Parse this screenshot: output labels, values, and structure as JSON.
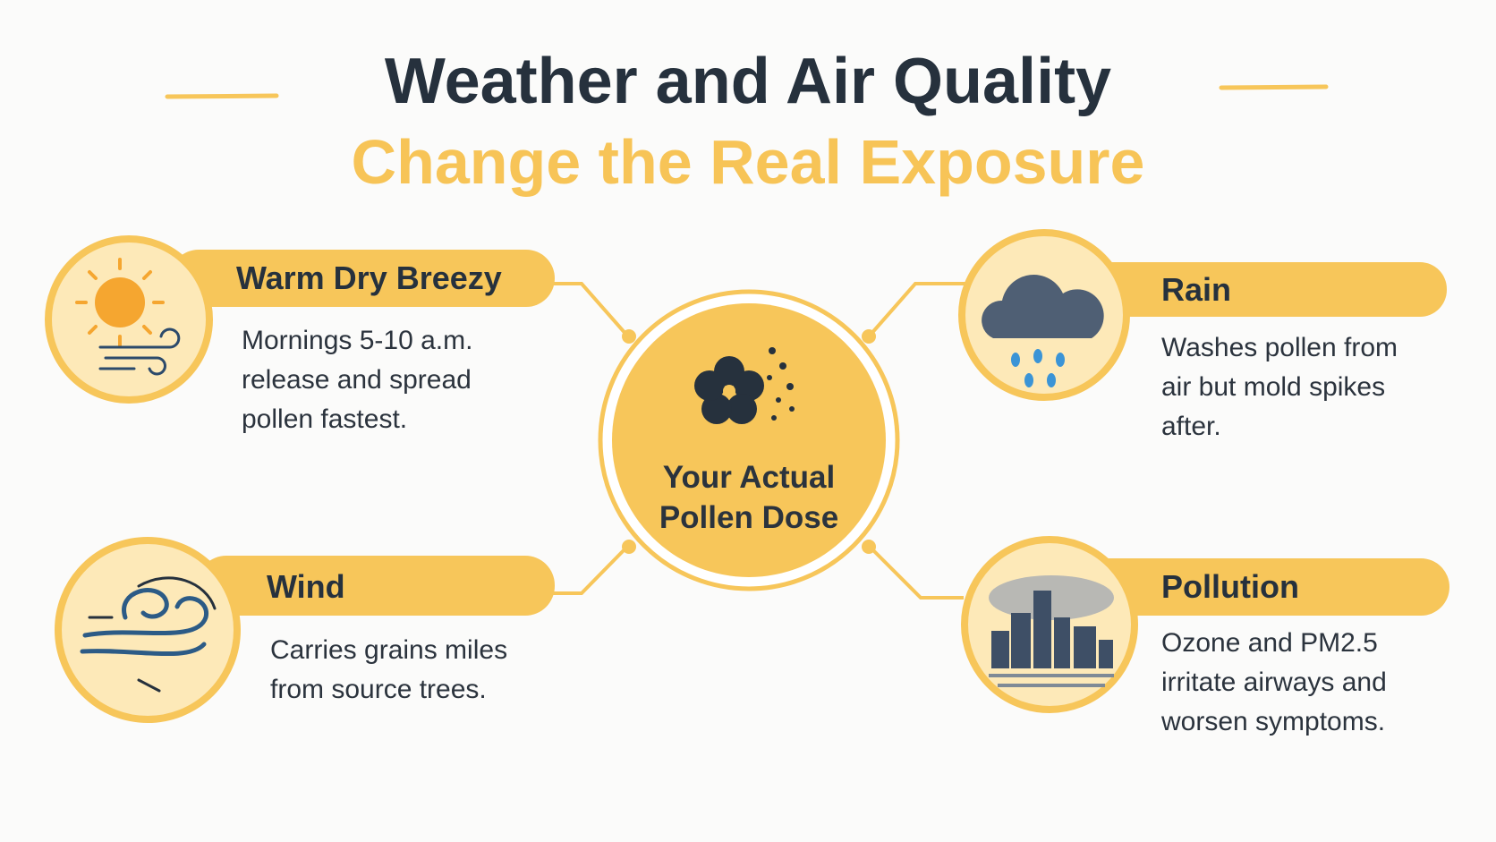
{
  "header": {
    "title_line1": "Weather and Air Quality",
    "title_line2": "Change the Real Exposure"
  },
  "center": {
    "label_lines": [
      "Your Actual",
      "Pollen Dose"
    ]
  },
  "cards": [
    {
      "title": "Warm Dry Breezy",
      "description": [
        "Mornings 5-10 a.m.",
        "release and spread",
        "pollen fastest."
      ]
    },
    {
      "title": "Wind",
      "description": [
        "Carries grains miles",
        "from source trees."
      ]
    },
    {
      "title": "Rain",
      "description": [
        "Washes pollen from",
        "air but mold spikes",
        "after."
      ]
    },
    {
      "title": "Pollution",
      "description": [
        "Ozone and PM2.5",
        "irritate airways and",
        "worsen symptoms."
      ]
    }
  ]
}
